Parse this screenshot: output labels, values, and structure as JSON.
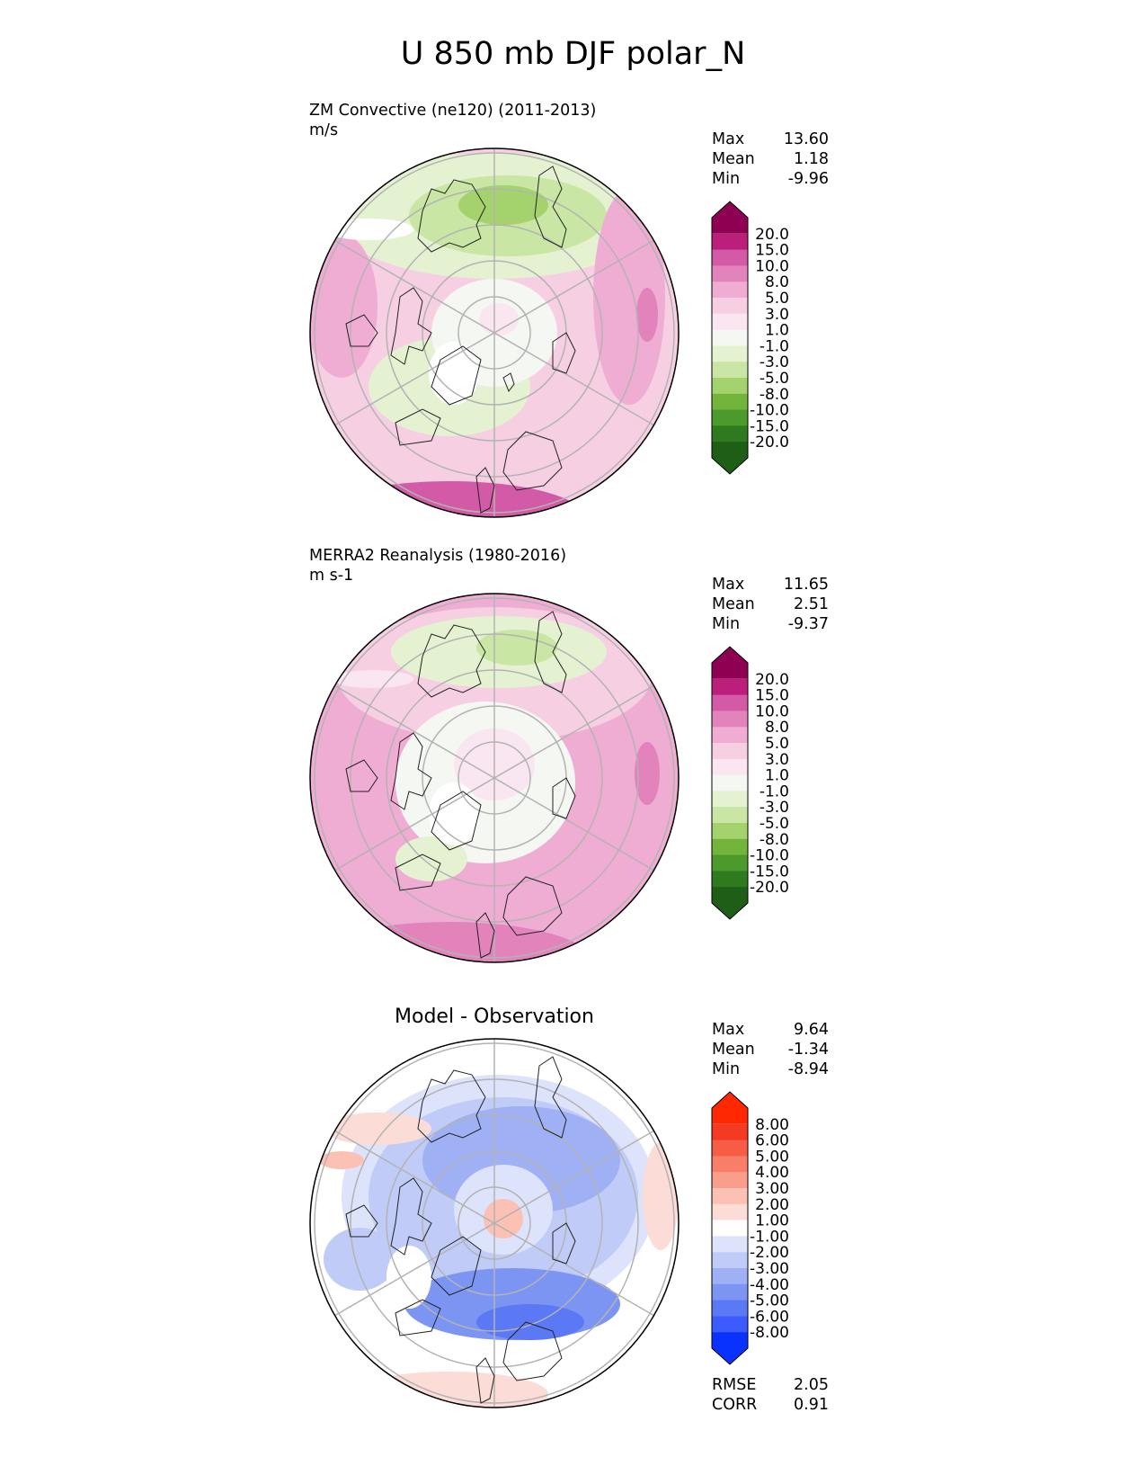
{
  "title": "U 850 mb DJF polar_N",
  "colors": {
    "land_outline": "#222222",
    "grid": "#b3b3b3",
    "pink_green_scale": [
      "#1f5e17",
      "#2f7a1f",
      "#4b9a2b",
      "#72b43c",
      "#a4d26c",
      "#c9e6a4",
      "#e4f2d2",
      "#f5f7f2",
      "#fae6f0",
      "#f6cfe3",
      "#efadd4",
      "#e283bc",
      "#d35aa7",
      "#bb1f7b",
      "#8e0152"
    ],
    "blue_red_scale": [
      "#0a32ff",
      "#3c5cff",
      "#5b78f5",
      "#7d95f2",
      "#9fb0f4",
      "#c0ccf7",
      "#dde3fa",
      "#ffffff",
      "#fcdcd6",
      "#fbc1b4",
      "#fa9e8c",
      "#f97e68",
      "#f75c46",
      "#f43a22",
      "#ff2800"
    ]
  },
  "panels": [
    {
      "id": "model",
      "title": "ZM Convective (ne120) (2011-2013)",
      "units": "m/s",
      "stats": [
        {
          "label": "Max",
          "value": "13.60"
        },
        {
          "label": "Mean",
          "value": "1.18"
        },
        {
          "label": "Min",
          "value": "-9.96"
        }
      ],
      "colorbar": {
        "scale": "pink_green",
        "labels": [
          "20.0",
          "15.0",
          "10.0",
          "8.0",
          "5.0",
          "3.0",
          "1.0",
          "-1.0",
          "-3.0",
          "-5.0",
          "-8.0",
          "-10.0",
          "-15.0",
          "-20.0"
        ]
      }
    },
    {
      "id": "obs",
      "title": "MERRA2 Reanalysis (1980-2016)",
      "units": "m s-1",
      "stats": [
        {
          "label": "Max",
          "value": "11.65"
        },
        {
          "label": "Mean",
          "value": "2.51"
        },
        {
          "label": "Min",
          "value": "-9.37"
        }
      ],
      "colorbar": {
        "scale": "pink_green",
        "labels": [
          "20.0",
          "15.0",
          "10.0",
          "8.0",
          "5.0",
          "3.0",
          "1.0",
          "-1.0",
          "-3.0",
          "-5.0",
          "-8.0",
          "-10.0",
          "-15.0",
          "-20.0"
        ]
      }
    },
    {
      "id": "diff",
      "center_title": "Model - Observation",
      "stats": [
        {
          "label": "Max",
          "value": "9.64"
        },
        {
          "label": "Mean",
          "value": "-1.34"
        },
        {
          "label": "Min",
          "value": "-8.94"
        }
      ],
      "colorbar": {
        "scale": "blue_red",
        "labels": [
          "8.00",
          "6.00",
          "5.00",
          "4.00",
          "3.00",
          "2.00",
          "1.00",
          "-1.00",
          "-2.00",
          "-3.00",
          "-4.00",
          "-5.00",
          "-6.00",
          "-8.00"
        ]
      },
      "metrics": [
        {
          "label": "RMSE",
          "value": "2.05"
        },
        {
          "label": "CORR",
          "value": "0.91"
        }
      ]
    }
  ]
}
